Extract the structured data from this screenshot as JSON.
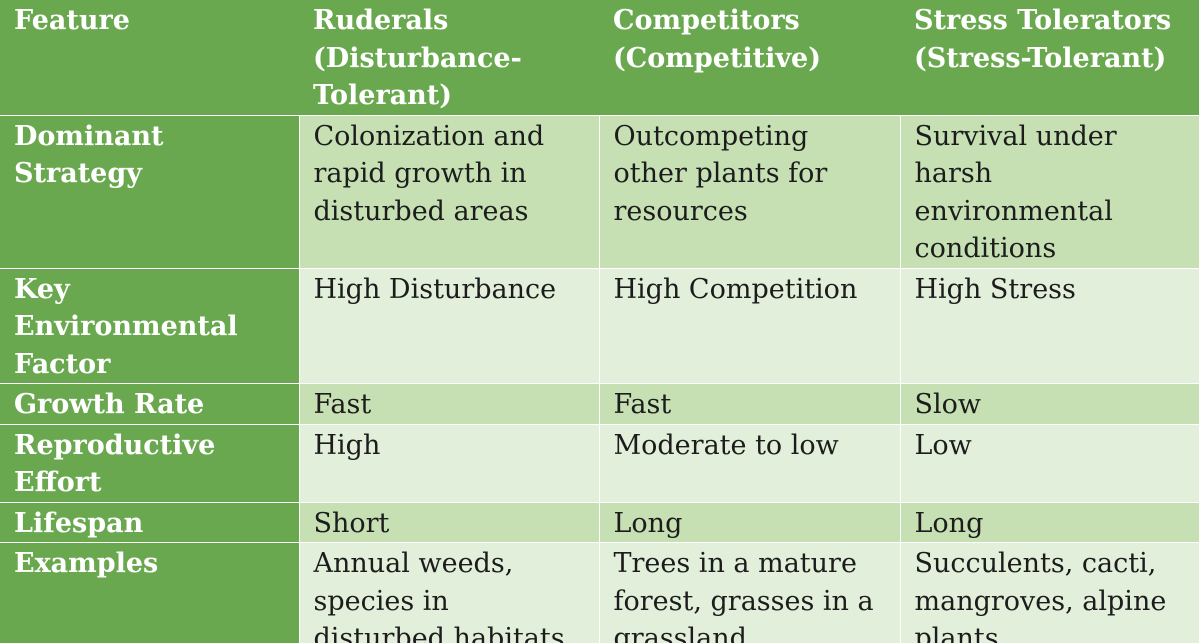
{
  "header": {
    "feature": "Feature",
    "ruderals": "Ruderals (Disturbance-Tolerant)",
    "competitors": "Competitors (Competitive)",
    "stress_tolerators": "Stress Tolerators (Stress-Tolerant)"
  },
  "rows": [
    {
      "feature": "Dominant Strategy",
      "ruderals": "Colonization and rapid growth in disturbed areas",
      "competitors": "Outcompeting other plants for resources",
      "stress_tolerators": "Survival under harsh environmental conditions"
    },
    {
      "feature": "Key Environmental Factor",
      "ruderals": "High Disturbance",
      "competitors": "High Competition",
      "stress_tolerators": "High Stress"
    },
    {
      "feature": "Growth Rate",
      "ruderals": "Fast",
      "competitors": "Fast",
      "stress_tolerators": "Slow"
    },
    {
      "feature": "Reproductive Effort",
      "ruderals": "High",
      "competitors": "Moderate to low",
      "stress_tolerators": "Low"
    },
    {
      "feature": "Lifespan",
      "ruderals": "Short",
      "competitors": "Long",
      "stress_tolerators": "Long"
    },
    {
      "feature": "Examples",
      "ruderals": "Annual weeds, species in disturbed habitats",
      "competitors": "Trees in a mature forest, grasses in a grassland",
      "stress_tolerators": "Succulents, cacti, mangroves, alpine plants"
    }
  ],
  "colors": {
    "header_green": "#6aa84f",
    "row_dark": "#c6e0b4",
    "row_light": "#e2efda"
  }
}
